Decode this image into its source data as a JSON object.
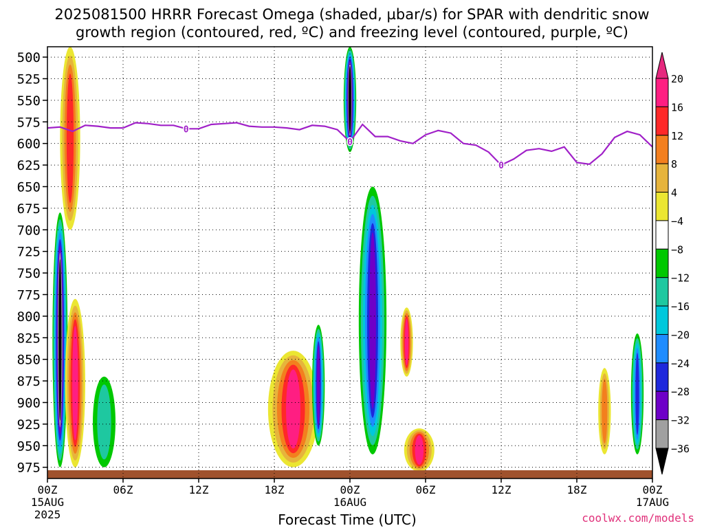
{
  "title_line1": "2025081500 HRRR Forecast Omega (shaded, µbar/s) for SPAR with dendritic snow",
  "title_line2": "growth region (contoured, red, ºC) and freezing level (contoured, purple, ºC)",
  "credit": "coolwx.com/models",
  "chart_data": {
    "type": "heatmap",
    "title": "2025081500 HRRR Forecast Omega (shaded, µbar/s) for SPAR with dendritic snow growth region (contoured, red, ºC) and freezing level (contoured, purple, ºC)",
    "xlabel": "Forecast Time (UTC)",
    "ylabel": "",
    "x_ticks": [
      {
        "hour": 0,
        "label": "00Z",
        "sub1": "15AUG",
        "sub2": "2025"
      },
      {
        "hour": 6,
        "label": "06Z",
        "sub1": "",
        "sub2": ""
      },
      {
        "hour": 12,
        "label": "12Z",
        "sub1": "",
        "sub2": ""
      },
      {
        "hour": 18,
        "label": "18Z",
        "sub1": "",
        "sub2": ""
      },
      {
        "hour": 24,
        "label": "00Z",
        "sub1": "16AUG",
        "sub2": ""
      },
      {
        "hour": 30,
        "label": "06Z",
        "sub1": "",
        "sub2": ""
      },
      {
        "hour": 36,
        "label": "12Z",
        "sub1": "",
        "sub2": ""
      },
      {
        "hour": 42,
        "label": "18Z",
        "sub1": "",
        "sub2": ""
      },
      {
        "hour": 48,
        "label": "00Z",
        "sub1": "17AUG",
        "sub2": ""
      }
    ],
    "xlim": [
      0,
      48
    ],
    "y_ticks": [
      500,
      525,
      550,
      575,
      600,
      625,
      650,
      675,
      700,
      725,
      750,
      775,
      800,
      825,
      850,
      875,
      900,
      925,
      950,
      975
    ],
    "ylim": [
      988,
      488
    ],
    "grid": true,
    "colorbar": {
      "labels": [
        "20",
        "16",
        "12",
        "8",
        "4",
        "−4",
        "−8",
        "−12",
        "−16",
        "−20",
        "−24",
        "−28",
        "−32",
        "−36"
      ],
      "colors": [
        "#ff1e82",
        "#ff2828",
        "#f37f1e",
        "#e6b43c",
        "#ebe632",
        "#ffffff",
        "#00c800",
        "#1ec8a0",
        "#00c8dc",
        "#1e8cff",
        "#1e28dc",
        "#6e00c8",
        "#a0a0a0",
        "#000000"
      ],
      "top_color": "#e6287e"
    },
    "freezing_level": {
      "label": "0",
      "color": "#a020c8",
      "hours": [
        0,
        1,
        2,
        3,
        4,
        5,
        6,
        7,
        8,
        9,
        10,
        11,
        12,
        13,
        14,
        15,
        16,
        17,
        18,
        19,
        20,
        21,
        22,
        23,
        24,
        25,
        26,
        27,
        28,
        29,
        30,
        31,
        32,
        33,
        34,
        35,
        36,
        37,
        38,
        39,
        40,
        41,
        42,
        43,
        44,
        45,
        46,
        47,
        48
      ],
      "pressure": [
        582,
        581,
        586,
        579,
        580,
        582,
        582,
        576,
        577,
        579,
        579,
        583,
        583,
        578,
        577,
        576,
        580,
        581,
        581,
        582,
        584,
        579,
        580,
        584,
        598,
        578,
        592,
        592,
        597,
        600,
        590,
        585,
        588,
        600,
        602,
        610,
        625,
        618,
        608,
        606,
        609,
        604,
        622,
        624,
        612,
        593,
        586,
        590,
        604
      ]
    },
    "omega_features": [
      {
        "hour": 1.0,
        "width": 1.2,
        "top": 680,
        "bottom": 975,
        "min": -40
      },
      {
        "hour": 1.8,
        "width": 1.6,
        "top": 488,
        "bottom": 700,
        "max": 18
      },
      {
        "hour": 2.2,
        "width": 1.6,
        "top": 780,
        "bottom": 975,
        "max": 20
      },
      {
        "hour": 4.5,
        "width": 1.8,
        "top": 870,
        "bottom": 975,
        "min": -12
      },
      {
        "hour": 19.5,
        "width": 4.0,
        "top": 840,
        "bottom": 975,
        "max": 22
      },
      {
        "hour": 21.5,
        "width": 1.0,
        "top": 810,
        "bottom": 950,
        "min": -30
      },
      {
        "hour": 24.0,
        "width": 1.0,
        "top": 488,
        "bottom": 610,
        "min": -40
      },
      {
        "hour": 25.8,
        "width": 2.2,
        "top": 650,
        "bottom": 960,
        "min": -30
      },
      {
        "hour": 28.5,
        "width": 1.0,
        "top": 790,
        "bottom": 870,
        "max": 22
      },
      {
        "hour": 29.5,
        "width": 2.4,
        "top": 930,
        "bottom": 980,
        "max": 20
      },
      {
        "hour": 46.8,
        "width": 1.0,
        "top": 820,
        "bottom": 960,
        "min": -24
      },
      {
        "hour": 44.2,
        "width": 1.0,
        "top": 860,
        "bottom": 960,
        "max": 12
      }
    ]
  }
}
